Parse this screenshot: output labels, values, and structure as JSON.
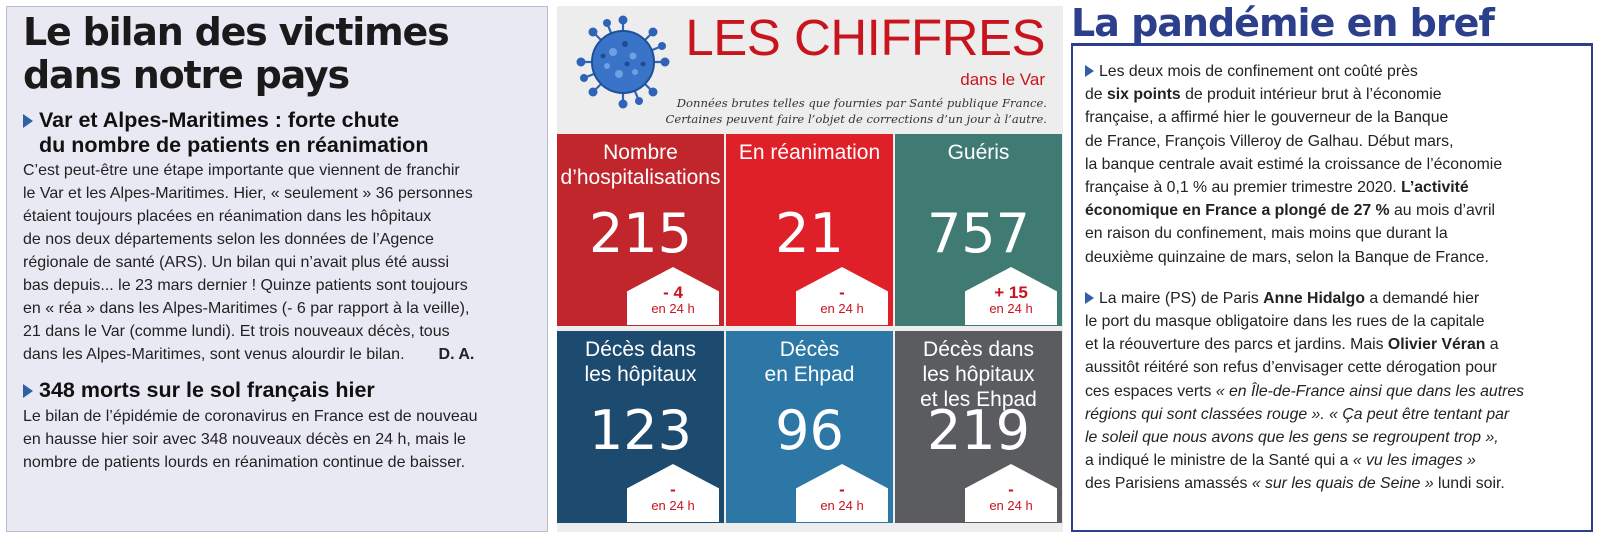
{
  "left": {
    "title_lines": [
      "Le bilan des victimes",
      "dans notre pays"
    ],
    "article1": {
      "heading_lines": [
        "Var et Alpes-Maritimes : forte chute",
        "du nombre de patients en réanimation"
      ],
      "body_lines": [
        "C’est peut-être une étape importante que viennent de franchir",
        "le Var et les Alpes-Maritimes. Hier, « seulement » 36 personnes",
        "étaient toujours placées en réanimation dans les hôpitaux",
        "de nos deux départements selon les données de l’Agence",
        "régionale de santé (ARS). Un bilan qui n’avait plus été aussi",
        "bas depuis... le 23 mars dernier ! Quinze patients sont toujours",
        "en « réa » dans les Alpes-Maritimes (- 6 par rapport à la veille),",
        "21 dans le Var (comme lundi). Et trois nouveaux décès, tous",
        "dans les Alpes-Maritimes, sont venus alourdir le bilan."
      ],
      "signature": "D. A."
    },
    "article2": {
      "heading": "348 morts sur le sol français hier",
      "body_lines": [
        "Le bilan de l’épidémie de coronavirus en France est de nouveau",
        "en hausse hier soir avec 348 nouveaux décès en 24 h, mais le",
        "nombre de patients lourds en réanimation continue de baisser."
      ]
    }
  },
  "middle": {
    "title": "LES CHIFFRES",
    "subtitle": "dans le Var",
    "note_lines": [
      "Données brutes telles que fournies par Santé publique France.",
      "Certaines peuvent faire l’objet de corrections d’un jour à l’autre."
    ],
    "tiles": [
      {
        "label_lines": [
          "Nombre",
          "d’hospitalisations"
        ],
        "value": "215",
        "delta": "- 4",
        "period": "en 24 h",
        "color": "#c0262c"
      },
      {
        "label_lines": [
          "En réanimation"
        ],
        "value": "21",
        "delta": "-",
        "period": "en 24 h",
        "color": "#e02029"
      },
      {
        "label_lines": [
          "Guéris"
        ],
        "value": "757",
        "delta": "+ 15",
        "period": "en 24 h",
        "color": "#3f7b73"
      },
      {
        "label_lines": [
          "Décès dans",
          "les hôpitaux"
        ],
        "value": "123",
        "delta": "-",
        "period": "en 24 h",
        "color": "#1d4a6f"
      },
      {
        "label_lines": [
          "Décès",
          "en Ehpad"
        ],
        "value": "96",
        "delta": "-",
        "period": "en 24 h",
        "color": "#2c77a5"
      },
      {
        "label_lines": [
          "Décès dans",
          "les hôpitaux",
          "et les Ehpad"
        ],
        "value": "219",
        "delta": "-",
        "period": "en 24 h",
        "color": "#5a5c60"
      }
    ]
  },
  "right": {
    "title": "La pandémie en bref",
    "p1": {
      "l1": "Les deux mois de confinement ont coûté près",
      "l2_b": "six points",
      "l2": " de produit intérieur brut à l’économie",
      "l3": "française, a affirmé hier le gouverneur de la Banque",
      "l4": "de France, François Villeroy de Galhau. Début mars,",
      "l5": "la banque centrale avait estimé la croissance de l’économie",
      "l6": "française à 0,1 % au premier trimestre 2020. ",
      "l6_b": "L’activité",
      "l7_b": "économique en France a plongé de 27 %",
      "l7": " au mois d’avril",
      "l8": "en raison du confinement, mais moins que durant la",
      "l9": "deuxième quinzaine de mars, selon la Banque de France."
    },
    "p2": {
      "l1a": "La maire (PS) de Paris ",
      "l1_b": "Anne Hidalgo",
      "l1c": " a demandé hier",
      "l2": "le port du masque obligatoire dans les rues de la capitale",
      "l3a": "et la réouverture des parcs et jardins. Mais ",
      "l3_b": "Olivier Véran",
      "l3c": " a",
      "l4": "aussitôt réitéré son refus d’envisager cette dérogation pour",
      "l5a": "ces espaces verts ",
      "l5_i": "« en Île-de-France ainsi que dans les autres",
      "l6_i": "régions qui sont classées rouge ».",
      "l6b": " ",
      "l6_i2": "« Ça peut être tentant par",
      "l7_i": "le soleil que nous avons que les gens se regroupent trop »,",
      "l8a": "a indiqué le ministre de la Santé qui a ",
      "l8_i": "« vu les images »",
      "l9a": "des Parisiens amassés ",
      "l9_i": "« sur les quais de Seine »",
      "l9b": " lundi soir."
    }
  }
}
